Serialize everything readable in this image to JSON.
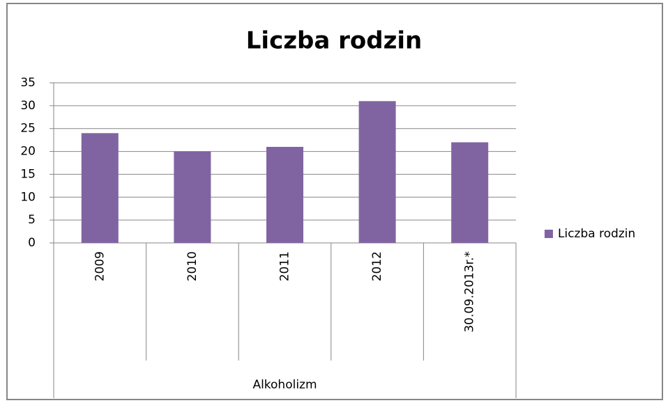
{
  "chart_data": {
    "type": "bar",
    "title": "Liczba rodzin",
    "categories": [
      "2009",
      "2010",
      "2011",
      "2012",
      "30.09.2013r.*"
    ],
    "group": "Alkoholizm",
    "series": [
      {
        "name": "Liczba rodzin",
        "color": "#8064a2",
        "values": [
          24,
          20,
          21,
          31,
          22
        ]
      }
    ],
    "ylim": [
      0,
      35
    ],
    "yticks": [
      0,
      5,
      10,
      15,
      20,
      25,
      30,
      35
    ],
    "grid": true,
    "legend": "right"
  }
}
